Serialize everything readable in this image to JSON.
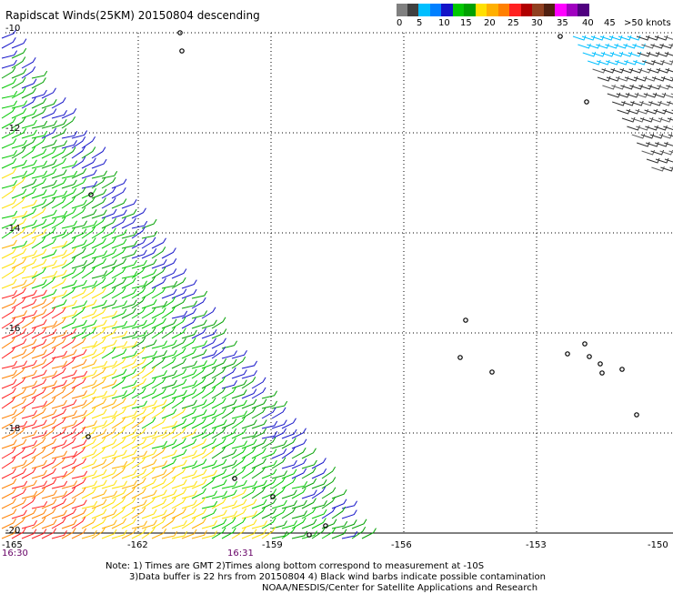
{
  "title": "Rapidscat Winds(25KM) 20150804 descending",
  "legend": {
    "colors": [
      "#808080",
      "#404040",
      "#00bfff",
      "#0080ff",
      "#1414c8",
      "#00c800",
      "#00a000",
      "#ffe000",
      "#ffb000",
      "#ff8000",
      "#ff2020",
      "#b00000",
      "#904020",
      "#502010",
      "#ff00ff",
      "#a000c0",
      "#500080"
    ],
    "labels": [
      "0",
      "5",
      "10",
      "15",
      "20",
      "25",
      "30",
      "35",
      "40",
      "45",
      ">50 knots"
    ]
  },
  "lat_labels": [
    "-10",
    "-12",
    "-14",
    "-16",
    "-18",
    "-20"
  ],
  "lon_labels": [
    "-165",
    "-162",
    "-159",
    "-156",
    "-153",
    "-150"
  ],
  "times": [
    "16:30",
    "16:31"
  ],
  "notes": [
    "Note: 1) Times are GMT 2)Times along bottom correspond to measurement at -10S",
    "3)Data buffer is 22 hrs from 20150804 4) Black wind barbs indicate possible contamination",
    "NOAA/NESDIS/Center for Satellite Applications and Research"
  ]
}
